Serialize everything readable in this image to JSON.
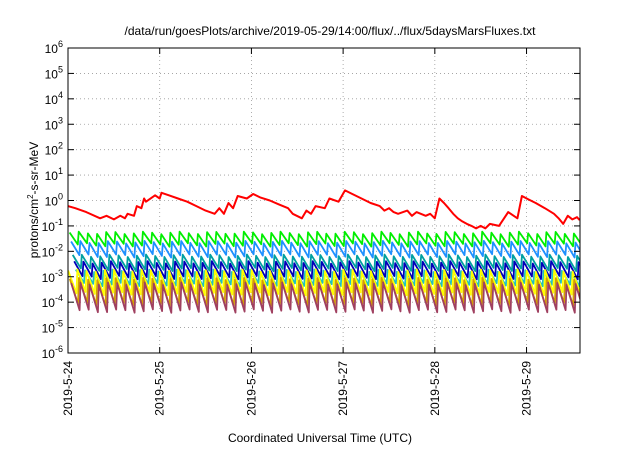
{
  "chart_data": {
    "type": "line",
    "title": "/data/run/goesPlots/archive/2019-05-29/14:00/flux/../flux/5daysMarsFluxes.txt",
    "xlabel": "Coordinated Universal Time (UTC)",
    "ylabel": {
      "prefix": "protons/cm",
      "sup": "2",
      "suffix": "-s-sr-MeV"
    },
    "xlim": [
      "2019-05-24",
      "2019-05-29 14:00"
    ],
    "ylim": [
      1e-06,
      1000000.0
    ],
    "yscale": "log",
    "grid": true,
    "y_ticks": [
      {
        "base": "10",
        "exp": "-6"
      },
      {
        "base": "10",
        "exp": "-5"
      },
      {
        "base": "10",
        "exp": "-4"
      },
      {
        "base": "10",
        "exp": "-3"
      },
      {
        "base": "10",
        "exp": "-2"
      },
      {
        "base": "10",
        "exp": "-1"
      },
      {
        "base": "10",
        "exp": "0"
      },
      {
        "base": "10",
        "exp": "1"
      },
      {
        "base": "10",
        "exp": "2"
      },
      {
        "base": "10",
        "exp": "3"
      },
      {
        "base": "10",
        "exp": "4"
      },
      {
        "base": "10",
        "exp": "5"
      },
      {
        "base": "10",
        "exp": "6"
      }
    ],
    "x_ticks": [
      "2019-5-24",
      "2019-5-25",
      "2019-5-26",
      "2019-5-27",
      "2019-5-28",
      "2019-5-29"
    ],
    "series": [
      {
        "color": "#ff0000",
        "x": [
          0.0,
          0.08,
          0.2,
          0.35,
          0.42,
          0.5,
          0.57,
          0.62,
          0.65,
          0.72,
          0.75,
          0.8,
          0.83,
          0.85,
          0.95,
          1.0,
          1.02,
          1.1,
          1.2,
          1.3,
          1.4,
          1.5,
          1.6,
          1.65,
          1.7,
          1.75,
          1.8,
          1.85,
          1.95,
          2.02,
          2.1,
          2.2,
          2.3,
          2.4,
          2.45,
          2.55,
          2.6,
          2.65,
          2.7,
          2.8,
          2.85,
          2.95,
          3.02,
          3.1,
          3.2,
          3.3,
          3.4,
          3.45,
          3.5,
          3.55,
          3.6,
          3.7,
          3.75,
          3.8,
          3.9,
          3.95,
          4.0,
          4.05,
          4.1,
          4.15,
          4.2,
          4.25,
          4.3,
          4.35,
          4.4,
          4.45,
          4.5,
          4.55,
          4.6,
          4.7,
          4.8,
          4.9,
          4.95,
          5.02,
          5.1,
          5.2,
          5.3,
          5.35,
          5.4,
          5.45,
          5.5,
          5.55,
          5.58
        ],
        "y": [
          0.6,
          0.5,
          0.35,
          0.2,
          0.25,
          0.18,
          0.25,
          0.2,
          0.3,
          0.25,
          0.6,
          0.5,
          1.2,
          0.9,
          1.6,
          1.2,
          2.0,
          1.6,
          1.2,
          0.9,
          0.6,
          0.4,
          0.3,
          0.5,
          0.3,
          0.8,
          0.5,
          1.5,
          1.2,
          1.8,
          1.3,
          1.0,
          0.7,
          0.5,
          0.3,
          0.2,
          0.4,
          0.3,
          0.6,
          0.5,
          1.2,
          0.9,
          2.5,
          1.8,
          1.2,
          0.8,
          0.6,
          0.4,
          0.5,
          0.35,
          0.3,
          0.4,
          0.25,
          0.35,
          0.25,
          0.3,
          0.2,
          1.2,
          0.8,
          0.5,
          0.3,
          0.2,
          0.15,
          0.12,
          0.1,
          0.08,
          0.1,
          0.08,
          0.12,
          0.1,
          0.35,
          0.2,
          1.5,
          1.1,
          0.8,
          0.5,
          0.3,
          0.2,
          0.12,
          0.25,
          0.18,
          0.22,
          0.17
        ]
      },
      {
        "color": "#00ee00",
        "base": 0.03,
        "amp": 3.0,
        "period": 0.1
      },
      {
        "color": "#1e90ff",
        "base": 0.012,
        "amp": 3.5,
        "period": 0.1
      },
      {
        "color": "#00a0a0",
        "base": 0.0035,
        "amp": 3.5,
        "period": 0.1
      },
      {
        "color": "#0000b8",
        "base": 0.0018,
        "amp": 4.0,
        "period": 0.1
      },
      {
        "color": "#20c0c0",
        "base": 0.0009,
        "amp": 3.5,
        "period": 0.1
      },
      {
        "color": "#ffff00",
        "base": 0.0006,
        "amp": 8.0,
        "period": 0.1
      },
      {
        "color": "#d4a000",
        "base": 0.00025,
        "amp": 10.0,
        "period": 0.1
      },
      {
        "color": "#a04060",
        "base": 0.00015,
        "amp": 12.0,
        "period": 0.1
      }
    ]
  }
}
